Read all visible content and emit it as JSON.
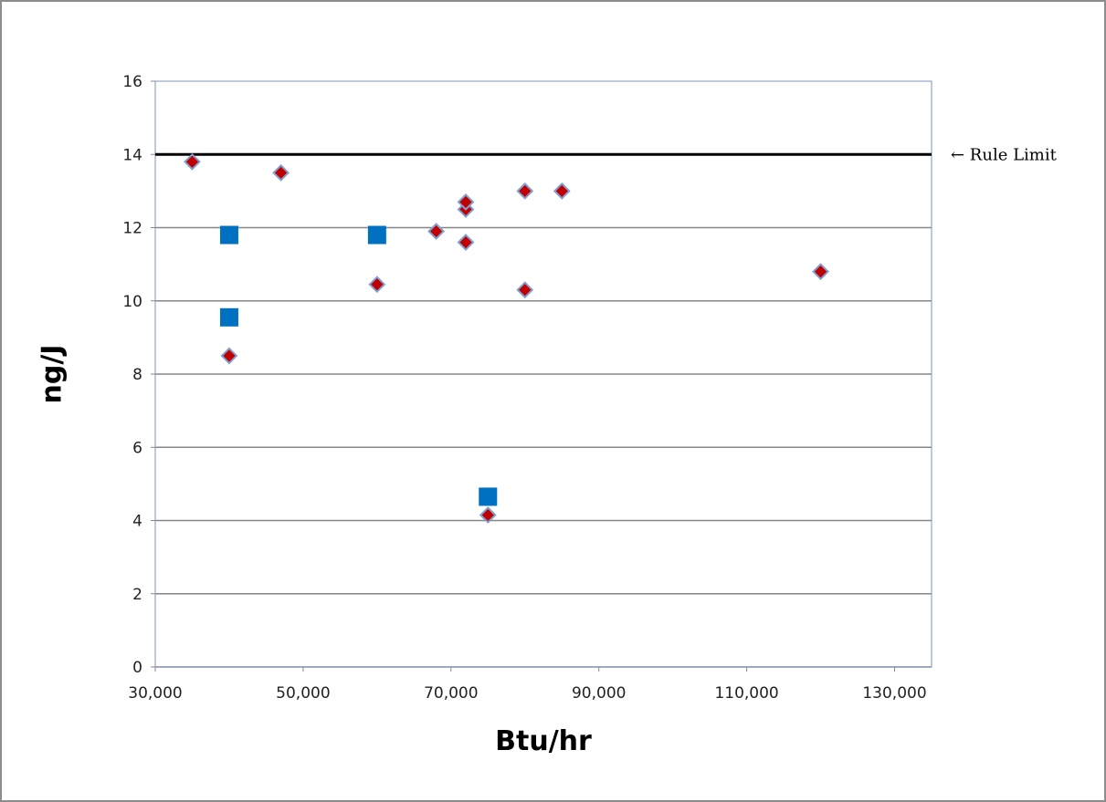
{
  "chart_data": {
    "type": "scatter",
    "title": "",
    "xlabel": "Btu/hr",
    "ylabel": "ng/J",
    "xlim": [
      30000,
      135000
    ],
    "ylim": [
      0,
      16
    ],
    "x_ticks": [
      30000,
      50000,
      70000,
      90000,
      110000,
      130000
    ],
    "x_tick_labels": [
      "30,000",
      "50,000",
      "70,000",
      "90,000",
      "110,000",
      "130,000"
    ],
    "y_ticks": [
      0,
      2,
      4,
      6,
      8,
      10,
      12,
      14,
      16
    ],
    "y_tick_labels": [
      "0",
      "2",
      "4",
      "6",
      "8",
      "10",
      "12",
      "14",
      "16"
    ],
    "grid": "horizontal",
    "legend": "none",
    "reference_line": {
      "y": 14,
      "label": "← Rule Limit",
      "color": "#000000"
    },
    "series": [
      {
        "marker": "diamond",
        "color": "#c00000",
        "edge_color": "#7f9fd0",
        "points": [
          [
            35000,
            13.8
          ],
          [
            40000,
            8.5
          ],
          [
            47000,
            13.5
          ],
          [
            60000,
            10.45
          ],
          [
            68000,
            11.9
          ],
          [
            72000,
            12.5
          ],
          [
            72000,
            12.7
          ],
          [
            72000,
            11.6
          ],
          [
            75000,
            4.15
          ],
          [
            80000,
            13.0
          ],
          [
            80000,
            10.3
          ],
          [
            85000,
            13.0
          ],
          [
            120000,
            10.8
          ]
        ]
      },
      {
        "marker": "square",
        "color": "#0070c0",
        "points": [
          [
            40000,
            11.8
          ],
          [
            40000,
            9.55
          ],
          [
            60000,
            11.8
          ],
          [
            75000,
            4.65
          ]
        ]
      }
    ]
  }
}
